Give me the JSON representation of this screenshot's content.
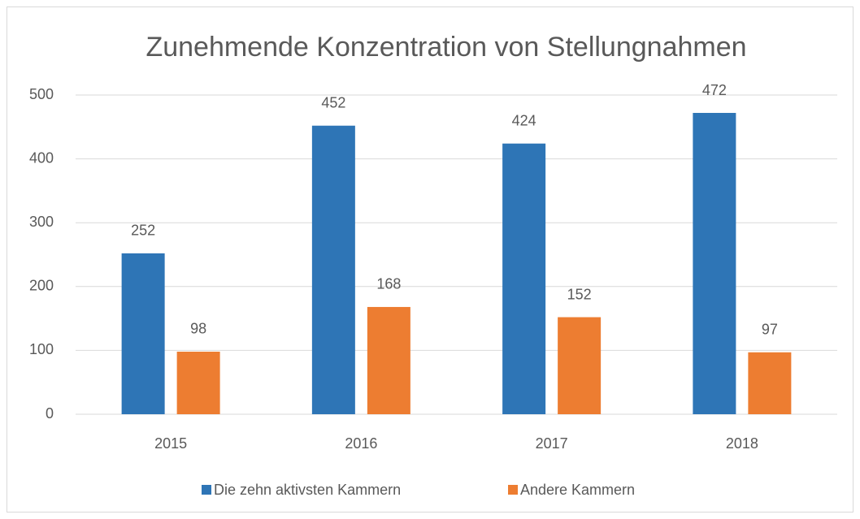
{
  "chart_data": {
    "type": "bar",
    "title": "Zunehmende Konzentration von Stellungnahmen",
    "categories": [
      "2015",
      "2016",
      "2017",
      "2018"
    ],
    "series": [
      {
        "name": "Die zehn aktivsten Kammern",
        "color": "#2e75b6",
        "values": [
          252,
          452,
          424,
          472
        ]
      },
      {
        "name": "Andere Kammern",
        "color": "#ed7d31",
        "values": [
          98,
          168,
          152,
          97
        ]
      }
    ],
    "ylim": [
      0,
      500
    ],
    "yticks": [
      0,
      100,
      200,
      300,
      400,
      500
    ],
    "grid": true,
    "legend": "bottom"
  }
}
